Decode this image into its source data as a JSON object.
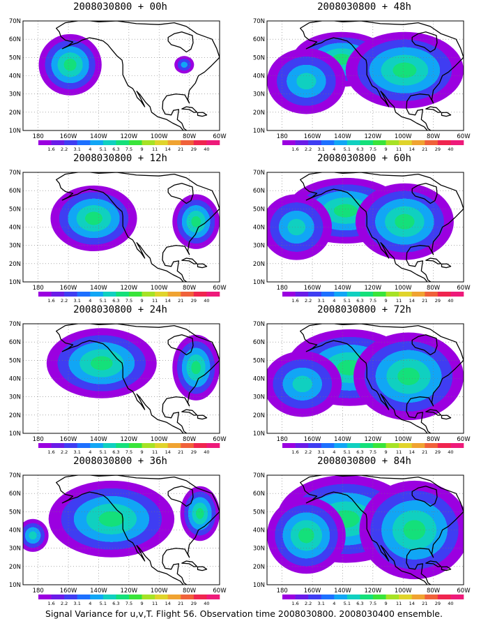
{
  "panels": [
    {
      "title": "2008030800 + 00h",
      "blobs": [
        [
          0.24,
          0.4,
          0.16,
          0.28,
          1.0
        ],
        [
          0.82,
          0.4,
          0.05,
          0.08,
          0.6
        ]
      ]
    },
    {
      "title": "2008030800 + 48h",
      "blobs": [
        [
          0.38,
          0.35,
          0.25,
          0.25,
          1.0
        ],
        [
          0.7,
          0.45,
          0.3,
          0.35,
          0.9
        ],
        [
          0.2,
          0.55,
          0.2,
          0.3,
          0.8
        ]
      ]
    },
    {
      "title": "2008030800 + 12h",
      "blobs": [
        [
          0.36,
          0.42,
          0.22,
          0.3,
          1.0
        ],
        [
          0.88,
          0.45,
          0.12,
          0.25,
          0.9
        ]
      ]
    },
    {
      "title": "2008030800 + 60h",
      "blobs": [
        [
          0.4,
          0.35,
          0.3,
          0.3,
          1.0
        ],
        [
          0.7,
          0.45,
          0.25,
          0.35,
          0.95
        ],
        [
          0.15,
          0.5,
          0.18,
          0.3,
          0.8
        ]
      ]
    },
    {
      "title": "2008030800 + 24h",
      "blobs": [
        [
          0.4,
          0.36,
          0.28,
          0.32,
          1.0
        ],
        [
          0.88,
          0.4,
          0.12,
          0.3,
          0.9
        ]
      ]
    },
    {
      "title": "2008030800 + 72h",
      "blobs": [
        [
          0.42,
          0.4,
          0.32,
          0.35,
          1.0
        ],
        [
          0.72,
          0.48,
          0.28,
          0.4,
          0.95
        ],
        [
          0.18,
          0.55,
          0.2,
          0.3,
          0.85
        ]
      ]
    },
    {
      "title": "2008030800 + 36h",
      "blobs": [
        [
          0.45,
          0.4,
          0.32,
          0.35,
          1.0
        ],
        [
          0.9,
          0.35,
          0.1,
          0.25,
          0.9
        ],
        [
          0.05,
          0.55,
          0.08,
          0.15,
          0.7
        ]
      ]
    },
    {
      "title": "2008030800 + 84h",
      "blobs": [
        [
          0.4,
          0.4,
          0.35,
          0.4,
          1.0
        ],
        [
          0.75,
          0.5,
          0.28,
          0.45,
          1.0
        ],
        [
          0.2,
          0.55,
          0.2,
          0.35,
          0.9
        ]
      ]
    }
  ],
  "y_ticks": [
    "70N",
    "60N",
    "50N",
    "40N",
    "30N",
    "20N",
    "10N"
  ],
  "x_ticks": [
    "180",
    "160W",
    "140W",
    "120W",
    "100W",
    "80W",
    "60W"
  ],
  "colorbar_labels": [
    "1.6",
    "2.2",
    "3.1",
    "4",
    "5.1",
    "6.3",
    "7.5",
    "9",
    "11",
    "14",
    "21",
    "29",
    "40"
  ],
  "colorbar_colors": [
    "#9b00e0",
    "#6a1be8",
    "#3f3df2",
    "#1d70ff",
    "#11a6f5",
    "#10d0c0",
    "#14e07a",
    "#39e43a",
    "#a6e225",
    "#e0d42b",
    "#f0a331",
    "#f0613a",
    "#f0254f",
    "#ee1a7a"
  ],
  "footer": "Signal Variance for u,v,T. Flight 56. Observation time 2008030800. 2008030400 ensemble."
}
